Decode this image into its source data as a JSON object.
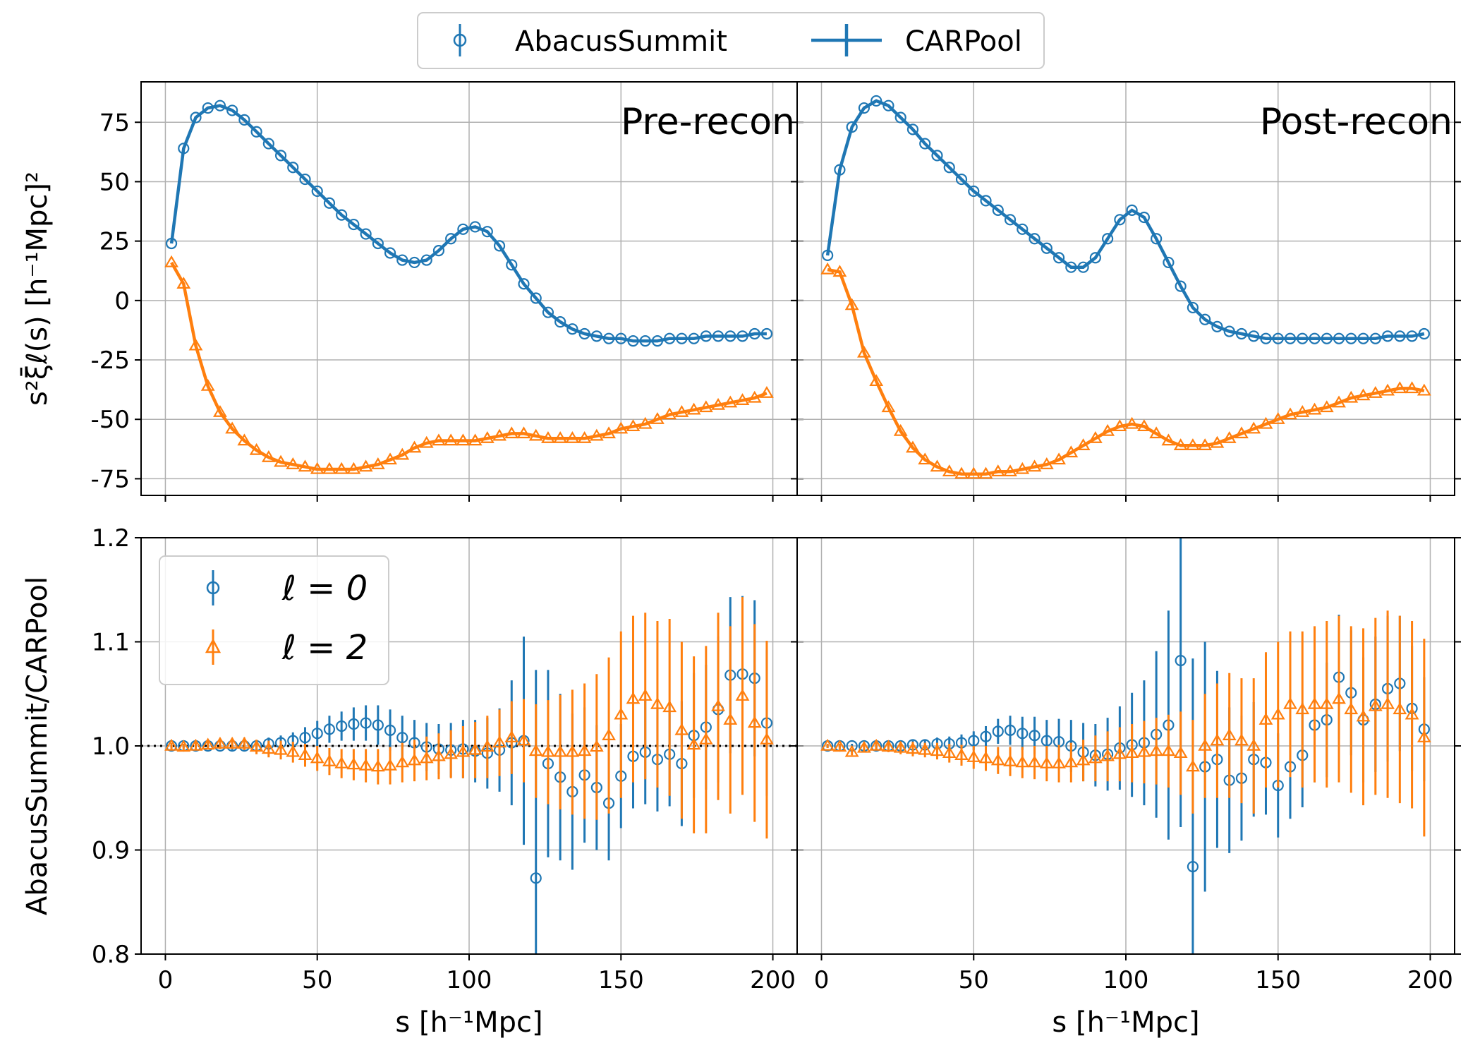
{
  "colors": {
    "blue": "#1f77b4",
    "orange": "#ff7f0e",
    "grid": "#b0b0b0",
    "axis": "#000000"
  },
  "legend_top": {
    "abacus": "AbacusSummit",
    "carpool": "CARPool"
  },
  "legend_bottom": {
    "l0": "ℓ = 0",
    "l2": "ℓ = 2"
  },
  "chart_data": [
    {
      "id": "pre_top",
      "type": "line",
      "title": "Pre-recon",
      "xlabel": "",
      "ylabel": "s²ξ̄ℓ(s) [h⁻¹Mpc]²",
      "xlim": [
        -8,
        208
      ],
      "ylim": [
        -82,
        92
      ],
      "xticks": [
        0,
        50,
        100,
        150,
        200
      ],
      "yticks": [
        -75,
        -50,
        -25,
        0,
        25,
        50,
        75
      ],
      "x": [
        2,
        6,
        10,
        14,
        18,
        22,
        26,
        30,
        34,
        38,
        42,
        46,
        50,
        54,
        58,
        62,
        66,
        70,
        74,
        78,
        82,
        86,
        90,
        94,
        98,
        102,
        106,
        110,
        114,
        118,
        122,
        126,
        130,
        134,
        138,
        142,
        146,
        150,
        154,
        158,
        162,
        166,
        170,
        174,
        178,
        182,
        186,
        190,
        194,
        198
      ],
      "series": [
        {
          "name": "ℓ = 0",
          "marker": "circle",
          "color": "blue",
          "values": [
            24,
            64,
            77,
            81,
            82,
            80,
            76,
            71,
            66,
            61,
            56,
            51,
            46,
            41,
            36,
            32,
            28,
            24,
            20,
            17,
            16,
            17,
            21,
            26,
            30,
            31,
            29,
            23,
            15,
            7,
            1,
            -5,
            -9,
            -12,
            -14,
            -15,
            -16,
            -16,
            -17,
            -17,
            -17,
            -16,
            -16,
            -16,
            -15,
            -15,
            -15,
            -15,
            -14,
            -14
          ]
        },
        {
          "name": "ℓ = 2",
          "marker": "triangle",
          "color": "orange",
          "values": [
            16,
            7,
            -19,
            -36,
            -47,
            -54,
            -59,
            -63,
            -66,
            -68,
            -69,
            -70,
            -71,
            -71,
            -71,
            -71,
            -70,
            -69,
            -67,
            -65,
            -62,
            -60,
            -59,
            -59,
            -59,
            -59,
            -58,
            -57,
            -56,
            -56,
            -57,
            -58,
            -58,
            -58,
            -58,
            -57,
            -56,
            -54,
            -53,
            -52,
            -50,
            -48,
            -47,
            -46,
            -45,
            -44,
            -43,
            -42,
            -41,
            -39
          ]
        }
      ]
    },
    {
      "id": "post_top",
      "type": "line",
      "title": "Post-recon",
      "xlabel": "",
      "ylabel": "",
      "xlim": [
        -8,
        208
      ],
      "ylim": [
        -82,
        92
      ],
      "xticks": [
        0,
        50,
        100,
        150,
        200
      ],
      "yticks": [
        -75,
        -50,
        -25,
        0,
        25,
        50,
        75
      ],
      "x": [
        2,
        6,
        10,
        14,
        18,
        22,
        26,
        30,
        34,
        38,
        42,
        46,
        50,
        54,
        58,
        62,
        66,
        70,
        74,
        78,
        82,
        86,
        90,
        94,
        98,
        102,
        106,
        110,
        114,
        118,
        122,
        126,
        130,
        134,
        138,
        142,
        146,
        150,
        154,
        158,
        162,
        166,
        170,
        174,
        178,
        182,
        186,
        190,
        194,
        198
      ],
      "series": [
        {
          "name": "ℓ = 0",
          "marker": "circle",
          "color": "blue",
          "values": [
            19,
            55,
            73,
            81,
            84,
            82,
            77,
            72,
            66,
            61,
            56,
            51,
            46,
            42,
            38,
            34,
            30,
            26,
            22,
            18,
            14,
            14,
            18,
            26,
            34,
            38,
            35,
            26,
            16,
            6,
            -3,
            -8,
            -11,
            -13,
            -14,
            -15,
            -16,
            -16,
            -16,
            -16,
            -16,
            -16,
            -16,
            -16,
            -16,
            -16,
            -15,
            -15,
            -15,
            -14
          ]
        },
        {
          "name": "ℓ = 2",
          "marker": "triangle",
          "color": "orange",
          "values": [
            13,
            12,
            -2,
            -22,
            -34,
            -45,
            -55,
            -62,
            -67,
            -70,
            -72,
            -73,
            -73,
            -73,
            -72,
            -72,
            -71,
            -70,
            -69,
            -67,
            -64,
            -61,
            -58,
            -55,
            -53,
            -52,
            -53,
            -56,
            -59,
            -61,
            -61,
            -61,
            -60,
            -58,
            -56,
            -54,
            -52,
            -50,
            -48,
            -47,
            -46,
            -45,
            -43,
            -41,
            -40,
            -39,
            -38,
            -37,
            -37,
            -38
          ]
        }
      ]
    },
    {
      "id": "pre_ratio",
      "type": "scatter",
      "title": "",
      "xlabel": "s [h⁻¹Mpc]",
      "ylabel": "AbacusSummit/CARPool",
      "xlim": [
        -8,
        208
      ],
      "ylim": [
        0.8,
        1.2
      ],
      "xticks": [
        0,
        50,
        100,
        150,
        200
      ],
      "yticks": [
        0.8,
        0.9,
        1.0,
        1.1,
        1.2
      ],
      "tick_labels_x": [
        "0",
        "50",
        "100",
        "150",
        "200"
      ],
      "tick_labels_y": [
        "0.8",
        "0.9",
        "1.0",
        "1.1",
        "1.2"
      ],
      "reference_line": 1.0,
      "x": [
        2,
        6,
        10,
        14,
        18,
        22,
        26,
        30,
        34,
        38,
        42,
        46,
        50,
        54,
        58,
        62,
        66,
        70,
        74,
        78,
        82,
        86,
        90,
        94,
        98,
        102,
        106,
        110,
        114,
        118,
        122,
        126,
        130,
        134,
        138,
        142,
        146,
        150,
        154,
        158,
        162,
        166,
        170,
        174,
        178,
        182,
        186,
        190,
        194,
        198
      ],
      "series": [
        {
          "name": "ℓ = 0",
          "marker": "circle",
          "color": "blue",
          "values": [
            1.0,
            1.0,
            1.0,
            1.0,
            1.0,
            1.0,
            1.0,
            1.0,
            1.002,
            1.003,
            1.005,
            1.008,
            1.012,
            1.016,
            1.019,
            1.021,
            1.022,
            1.02,
            1.015,
            1.008,
            1.003,
            0.999,
            0.997,
            0.996,
            0.997,
            0.995,
            0.993,
            0.996,
            1.003,
            1.005,
            0.873,
            0.983,
            0.97,
            0.956,
            0.972,
            0.96,
            0.945,
            0.971,
            0.99,
            0.994,
            0.987,
            0.992,
            0.983,
            1.01,
            1.018,
            1.035,
            1.068,
            1.069,
            1.065,
            1.022
          ],
          "errors": [
            0.002,
            0.002,
            0.002,
            0.003,
            0.003,
            0.004,
            0.004,
            0.005,
            0.006,
            0.007,
            0.008,
            0.01,
            0.012,
            0.013,
            0.014,
            0.016,
            0.017,
            0.019,
            0.02,
            0.021,
            0.022,
            0.023,
            0.024,
            0.026,
            0.028,
            0.03,
            0.034,
            0.04,
            0.06,
            0.1,
            0.2,
            0.09,
            0.08,
            0.075,
            0.065,
            0.06,
            0.055,
            0.05,
            0.05,
            0.05,
            0.05,
            0.05,
            0.06,
            0.06,
            0.06,
            0.07,
            0.075,
            0.075,
            0.075,
            0.07
          ]
        },
        {
          "name": "ℓ = 2",
          "marker": "triangle",
          "color": "orange",
          "values": [
            1.0,
            0.999,
            1.0,
            1.001,
            1.002,
            1.002,
            1.002,
            0.999,
            0.997,
            0.996,
            0.994,
            0.991,
            0.988,
            0.985,
            0.983,
            0.982,
            0.981,
            0.98,
            0.981,
            0.984,
            0.986,
            0.988,
            0.99,
            0.992,
            0.994,
            0.996,
            0.999,
            1.003,
            1.008,
            1.005,
            0.995,
            0.994,
            0.994,
            0.994,
            0.995,
            0.999,
            1.01,
            1.03,
            1.045,
            1.048,
            1.04,
            1.037,
            1.015,
            1.001,
            1.006,
            1.038,
            1.025,
            1.048,
            1.022,
            1.006
          ],
          "errors": [
            0.003,
            0.003,
            0.004,
            0.004,
            0.005,
            0.005,
            0.006,
            0.007,
            0.008,
            0.009,
            0.01,
            0.011,
            0.012,
            0.013,
            0.014,
            0.015,
            0.016,
            0.017,
            0.018,
            0.019,
            0.02,
            0.021,
            0.022,
            0.023,
            0.025,
            0.027,
            0.03,
            0.032,
            0.035,
            0.04,
            0.045,
            0.05,
            0.055,
            0.06,
            0.065,
            0.07,
            0.075,
            0.08,
            0.08,
            0.08,
            0.08,
            0.085,
            0.085,
            0.085,
            0.09,
            0.09,
            0.09,
            0.095,
            0.095,
            0.095
          ]
        }
      ]
    },
    {
      "id": "post_ratio",
      "type": "scatter",
      "title": "",
      "xlabel": "s [h⁻¹Mpc]",
      "ylabel": "",
      "xlim": [
        -8,
        208
      ],
      "ylim": [
        0.8,
        1.2
      ],
      "xticks": [
        0,
        50,
        100,
        150,
        200
      ],
      "yticks": [
        0.8,
        0.9,
        1.0,
        1.1,
        1.2
      ],
      "tick_labels_x": [
        "0",
        "50",
        "100",
        "150",
        "200"
      ],
      "reference_line": null,
      "x": [
        2,
        6,
        10,
        14,
        18,
        22,
        26,
        30,
        34,
        38,
        42,
        46,
        50,
        54,
        58,
        62,
        66,
        70,
        74,
        78,
        82,
        86,
        90,
        94,
        98,
        102,
        106,
        110,
        114,
        118,
        122,
        126,
        130,
        134,
        138,
        142,
        146,
        150,
        154,
        158,
        162,
        166,
        170,
        174,
        178,
        182,
        186,
        190,
        194,
        198
      ],
      "series": [
        {
          "name": "ℓ = 0",
          "marker": "circle",
          "color": "blue",
          "values": [
            1.0,
            1.0,
            1.0,
            1.0,
            1.0,
            1.0,
            1.0,
            1.001,
            1.001,
            1.002,
            1.002,
            1.003,
            1.005,
            1.009,
            1.014,
            1.015,
            1.012,
            1.01,
            1.005,
            1.004,
            1.0,
            0.994,
            0.991,
            0.992,
            0.998,
            1.001,
            1.003,
            1.011,
            1.02,
            1.082,
            0.884,
            0.98,
            0.987,
            0.967,
            0.969,
            0.987,
            0.984,
            0.962,
            0.98,
            0.991,
            1.02,
            1.025,
            1.066,
            1.051,
            1.025,
            1.04,
            1.055,
            1.06,
            1.036,
            1.016
          ],
          "errors": [
            0.002,
            0.002,
            0.002,
            0.002,
            0.003,
            0.003,
            0.003,
            0.004,
            0.005,
            0.006,
            0.007,
            0.008,
            0.009,
            0.01,
            0.012,
            0.014,
            0.016,
            0.018,
            0.02,
            0.022,
            0.025,
            0.028,
            0.03,
            0.035,
            0.04,
            0.05,
            0.06,
            0.08,
            0.11,
            0.16,
            0.2,
            0.12,
            0.085,
            0.07,
            0.06,
            0.055,
            0.05,
            0.05,
            0.05,
            0.05,
            0.055,
            0.055,
            0.06,
            0.06,
            0.06,
            0.065,
            0.07,
            0.065,
            0.06,
            0.05
          ]
        },
        {
          "name": "ℓ = 2",
          "marker": "triangle",
          "color": "orange",
          "values": [
            1.0,
            0.999,
            0.994,
            0.998,
            1.0,
            0.999,
            0.998,
            0.997,
            0.996,
            0.995,
            0.993,
            0.991,
            0.989,
            0.988,
            0.986,
            0.985,
            0.984,
            0.984,
            0.983,
            0.983,
            0.984,
            0.986,
            0.988,
            0.99,
            0.992,
            0.993,
            0.994,
            0.995,
            0.995,
            0.993,
            0.98,
            1.0,
            1.005,
            1.01,
            1.005,
            1.0,
            1.025,
            1.03,
            1.04,
            1.035,
            1.04,
            1.04,
            1.045,
            1.035,
            1.028,
            1.038,
            1.04,
            1.035,
            1.03,
            1.008
          ],
          "errors": [
            0.002,
            0.003,
            0.003,
            0.004,
            0.004,
            0.005,
            0.006,
            0.007,
            0.007,
            0.008,
            0.009,
            0.01,
            0.011,
            0.012,
            0.013,
            0.014,
            0.015,
            0.016,
            0.017,
            0.018,
            0.019,
            0.02,
            0.022,
            0.024,
            0.026,
            0.028,
            0.03,
            0.032,
            0.035,
            0.04,
            0.045,
            0.05,
            0.055,
            0.06,
            0.06,
            0.065,
            0.065,
            0.07,
            0.07,
            0.075,
            0.075,
            0.08,
            0.08,
            0.08,
            0.085,
            0.085,
            0.09,
            0.09,
            0.09,
            0.095
          ]
        }
      ]
    }
  ]
}
